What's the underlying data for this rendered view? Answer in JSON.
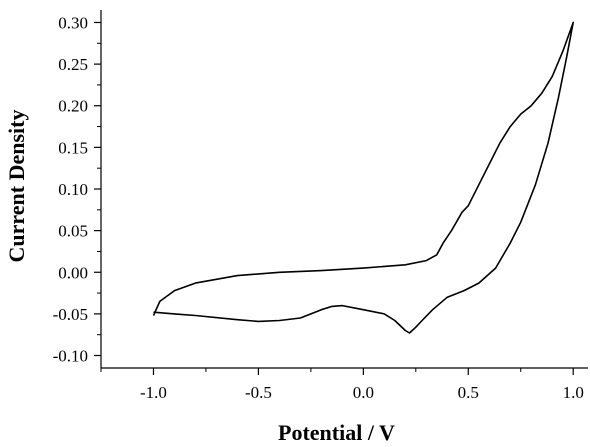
{
  "chart_data": {
    "type": "line",
    "title": "",
    "xlabel": "Potential / V",
    "ylabel": "Current Density",
    "xlim": [
      -1.25,
      1.08
    ],
    "ylim": [
      -0.115,
      0.315
    ],
    "grid": false,
    "legend": "none",
    "x_ticks": [
      -1.0,
      -0.5,
      0.0,
      0.5,
      1.0
    ],
    "x_tick_labels": [
      "-1.0",
      "-0.5",
      "0.0",
      "0.5",
      "1.0"
    ],
    "y_ticks": [
      -0.1,
      -0.05,
      0.0,
      0.05,
      0.1,
      0.15,
      0.2,
      0.25,
      0.3
    ],
    "y_tick_labels": [
      "-0.10",
      "-0.05",
      "0.00",
      "0.05",
      "0.10",
      "0.15",
      "0.20",
      "0.25",
      "0.30"
    ],
    "series": [
      {
        "color": "#000000",
        "x": [
          -1.0,
          -0.97,
          -0.9,
          -0.8,
          -0.6,
          -0.4,
          -0.2,
          0.0,
          0.2,
          0.3,
          0.35,
          0.38,
          0.42,
          0.47,
          0.5,
          0.55,
          0.6,
          0.65,
          0.7,
          0.75,
          0.8,
          0.85,
          0.9,
          0.95,
          1.0,
          0.97,
          0.93,
          0.88,
          0.82,
          0.75,
          0.7,
          0.63,
          0.55,
          0.48,
          0.4,
          0.33,
          0.28,
          0.25,
          0.22,
          0.2,
          0.15,
          0.1,
          0.0,
          -0.1,
          -0.15,
          -0.2,
          -0.3,
          -0.4,
          -0.5,
          -0.6,
          -0.8,
          -0.9,
          -1.0
        ],
        "y": [
          -0.052,
          -0.035,
          -0.022,
          -0.013,
          -0.004,
          0.0,
          0.002,
          0.005,
          0.009,
          0.014,
          0.021,
          0.035,
          0.05,
          0.072,
          0.08,
          0.105,
          0.13,
          0.155,
          0.175,
          0.19,
          0.2,
          0.215,
          0.235,
          0.265,
          0.3,
          0.26,
          0.21,
          0.155,
          0.105,
          0.06,
          0.035,
          0.005,
          -0.013,
          -0.022,
          -0.03,
          -0.045,
          -0.058,
          -0.066,
          -0.073,
          -0.07,
          -0.058,
          -0.05,
          -0.045,
          -0.04,
          -0.041,
          -0.045,
          -0.055,
          -0.058,
          -0.059,
          -0.057,
          -0.052,
          -0.05,
          -0.048
        ]
      }
    ]
  }
}
